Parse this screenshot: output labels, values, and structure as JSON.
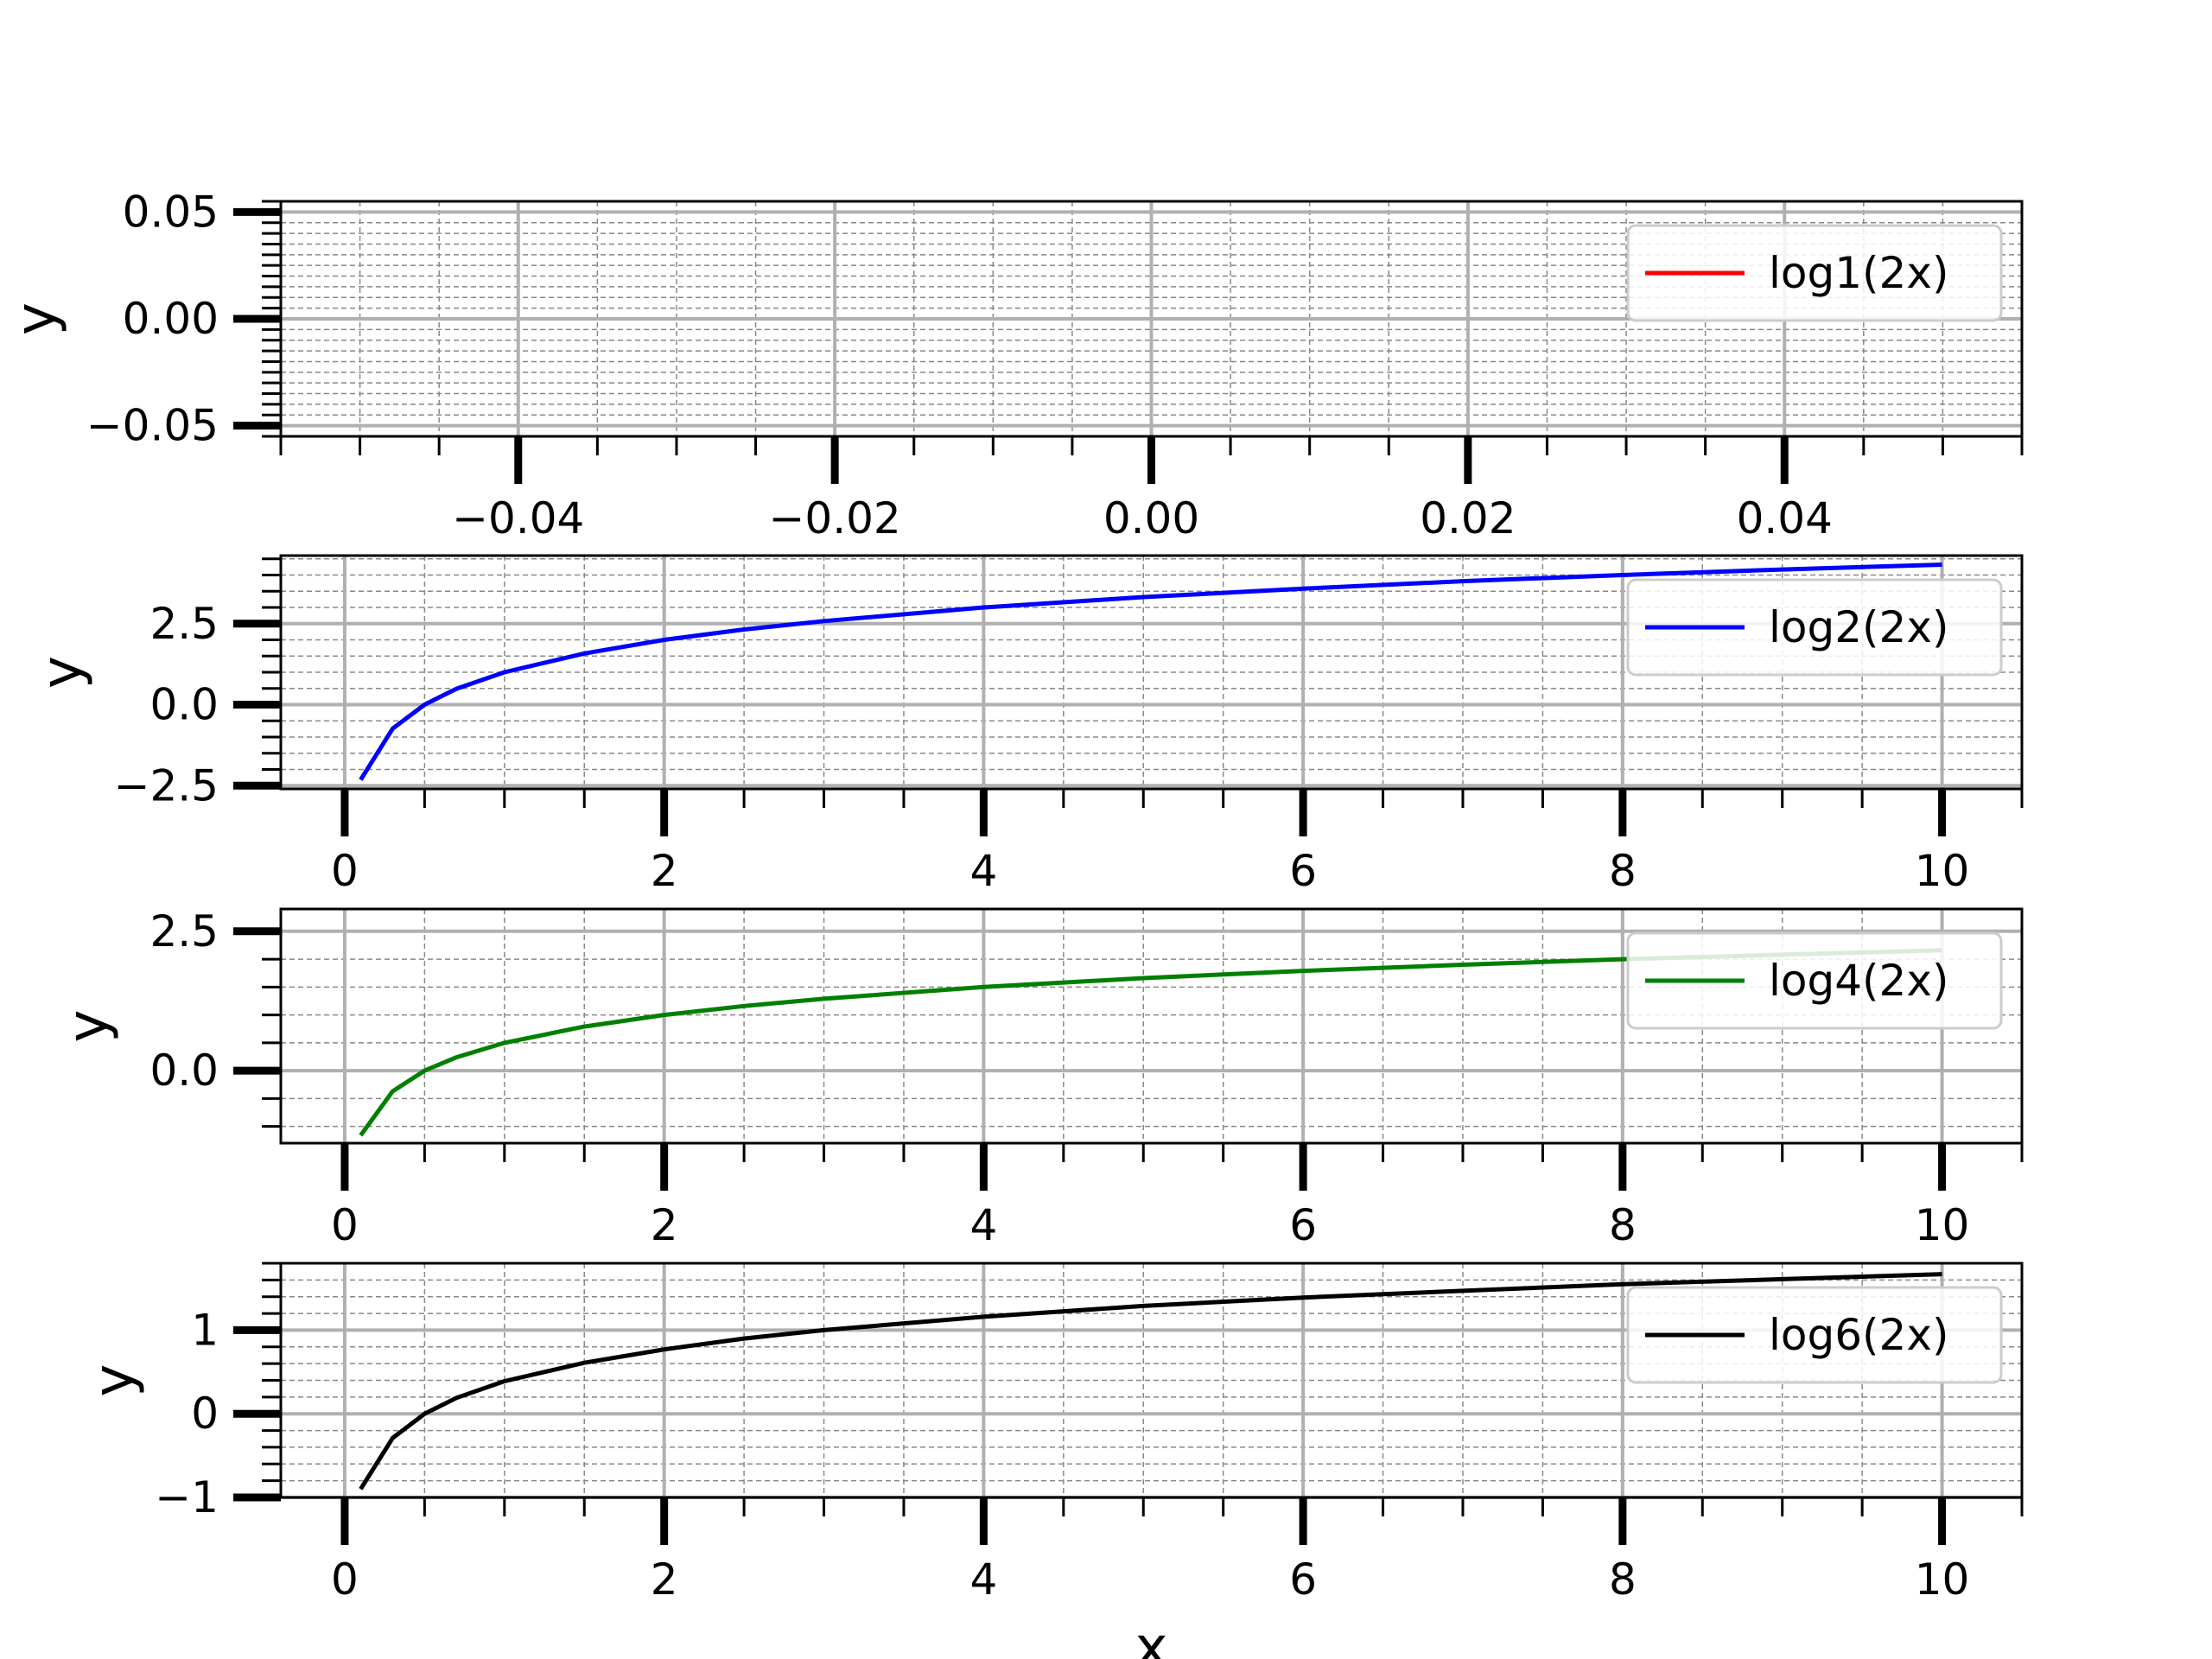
{
  "chart_data": [
    {
      "type": "line",
      "xlabel": "",
      "ylabel": "y",
      "xlim": [
        -0.055,
        0.055
      ],
      "ylim": [
        -0.055,
        0.055
      ],
      "x_ticks": [
        -0.04,
        -0.02,
        0.0,
        0.02,
        0.04
      ],
      "x_tick_labels": [
        "−0.04",
        "−0.02",
        "0.00",
        "0.02",
        "0.04"
      ],
      "y_ticks": [
        -0.05,
        0.0,
        0.05
      ],
      "y_tick_labels": [
        "−0.05",
        "0.00",
        "0.05"
      ],
      "grid": true,
      "legend": "top-right",
      "series": [
        {
          "name": "log1(2x)",
          "color": "#ff0000",
          "x": [],
          "values": []
        }
      ]
    },
    {
      "type": "line",
      "xlabel": "",
      "ylabel": "y",
      "xlim": [
        -0.4,
        10.5
      ],
      "ylim": [
        -2.6,
        4.6
      ],
      "x_ticks": [
        0,
        2,
        4,
        6,
        8,
        10
      ],
      "x_tick_labels": [
        "0",
        "2",
        "4",
        "6",
        "8",
        "10"
      ],
      "y_ticks": [
        -2.5,
        0.0,
        2.5
      ],
      "y_tick_labels": [
        "−2.5",
        "0.0",
        "2.5"
      ],
      "grid": true,
      "legend": "top-right",
      "series": [
        {
          "name": "log2(2x)",
          "color": "#0000ff",
          "x": [
            0.1,
            0.3,
            0.5,
            0.7,
            1.0,
            1.5,
            2.0,
            2.5,
            3.0,
            4.0,
            5.0,
            6.0,
            7.0,
            8.0,
            9.0,
            10.0
          ],
          "values": [
            -2.32,
            -0.74,
            0.0,
            0.49,
            1.0,
            1.58,
            2.0,
            2.32,
            2.58,
            3.0,
            3.32,
            3.58,
            3.81,
            4.0,
            4.17,
            4.32
          ]
        }
      ]
    },
    {
      "type": "line",
      "xlabel": "",
      "ylabel": "y",
      "xlim": [
        -0.4,
        10.5
      ],
      "ylim": [
        -1.3,
        2.9
      ],
      "x_ticks": [
        0,
        2,
        4,
        6,
        8,
        10
      ],
      "x_tick_labels": [
        "0",
        "2",
        "4",
        "6",
        "8",
        "10"
      ],
      "y_ticks": [
        0.0,
        2.5
      ],
      "y_tick_labels": [
        "0.0",
        "2.5"
      ],
      "grid": true,
      "legend": "top-right",
      "series": [
        {
          "name": "log4(2x)",
          "color": "#008000",
          "x": [
            0.1,
            0.3,
            0.5,
            0.7,
            1.0,
            1.5,
            2.0,
            2.5,
            3.0,
            4.0,
            5.0,
            6.0,
            7.0,
            8.0,
            9.0,
            10.0
          ],
          "values": [
            -1.16,
            -0.37,
            0.0,
            0.24,
            0.5,
            0.79,
            1.0,
            1.16,
            1.29,
            1.5,
            1.66,
            1.79,
            1.9,
            2.0,
            2.08,
            2.16
          ]
        }
      ]
    },
    {
      "type": "line",
      "xlabel": "x",
      "ylabel": "y",
      "xlim": [
        -0.4,
        10.5
      ],
      "ylim": [
        -1.0,
        1.8
      ],
      "x_ticks": [
        0,
        2,
        4,
        6,
        8,
        10
      ],
      "x_tick_labels": [
        "0",
        "2",
        "4",
        "6",
        "8",
        "10"
      ],
      "y_ticks": [
        -1,
        0,
        1
      ],
      "y_tick_labels": [
        "−1",
        "0",
        "1"
      ],
      "grid": true,
      "legend": "top-right",
      "series": [
        {
          "name": "log6(2x)",
          "color": "#000000",
          "x": [
            0.1,
            0.3,
            0.5,
            0.7,
            1.0,
            1.5,
            2.0,
            2.5,
            3.0,
            4.0,
            5.0,
            6.0,
            7.0,
            8.0,
            9.0,
            10.0
          ],
          "values": [
            -0.9,
            -0.29,
            0.0,
            0.19,
            0.39,
            0.61,
            0.77,
            0.9,
            1.0,
            1.16,
            1.29,
            1.39,
            1.47,
            1.55,
            1.61,
            1.67
          ]
        }
      ]
    }
  ]
}
